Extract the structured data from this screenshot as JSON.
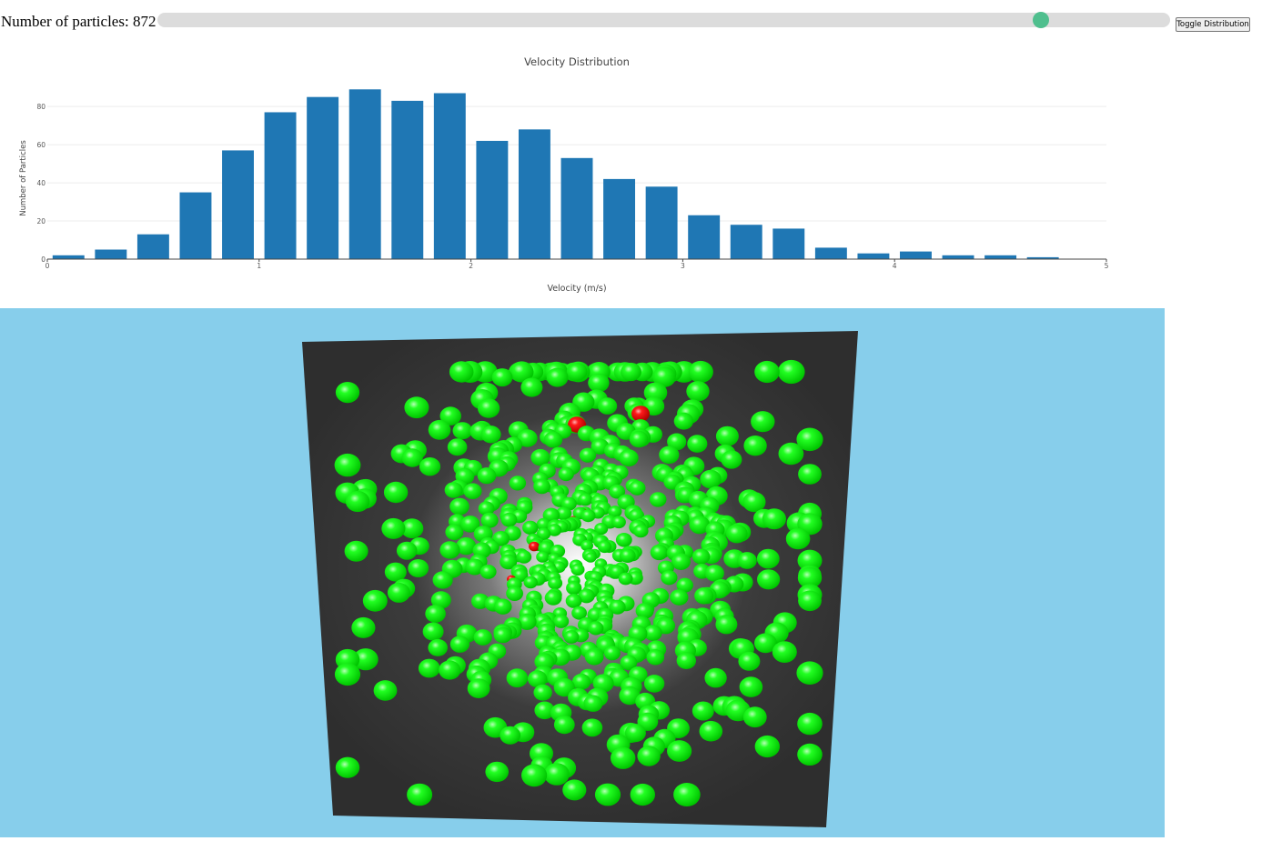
{
  "controls": {
    "count_prefix": "Number of particles: ",
    "count_value": "872",
    "slider_value": 872,
    "slider_max": 1000,
    "slider_thumb_color": "#4fbf8e",
    "toggle_button_label": "Toggle Distribution"
  },
  "chart_data": {
    "type": "bar",
    "title": "Velocity Distribution",
    "xlabel": "Velocity (m/s)",
    "ylabel": "Number of Particles",
    "bar_color": "#1f77b4",
    "grid": true,
    "xlim": [
      0,
      5
    ],
    "ylim": [
      0,
      92
    ],
    "xticks": [
      0,
      1,
      2,
      3,
      4,
      5
    ],
    "yticks": [
      0,
      20,
      40,
      60,
      80
    ],
    "bin_centers": [
      0.1,
      0.3,
      0.5,
      0.7,
      0.9,
      1.1,
      1.3,
      1.5,
      1.7,
      1.9,
      2.1,
      2.3,
      2.5,
      2.7,
      2.9,
      3.1,
      3.3,
      3.5,
      3.7,
      3.9,
      4.1,
      4.3,
      4.5,
      4.7,
      4.9
    ],
    "bin_width": 0.2,
    "values": [
      2,
      5,
      13,
      35,
      57,
      77,
      85,
      89,
      83,
      87,
      62,
      68,
      53,
      42,
      38,
      23,
      18,
      16,
      6,
      3,
      4,
      2,
      2,
      1,
      0
    ]
  },
  "scene": {
    "background_color": "#87ceeb",
    "floor_color": "#333333",
    "particle_color": "#00ff00",
    "highlight_particle_color": "#ff0000"
  }
}
